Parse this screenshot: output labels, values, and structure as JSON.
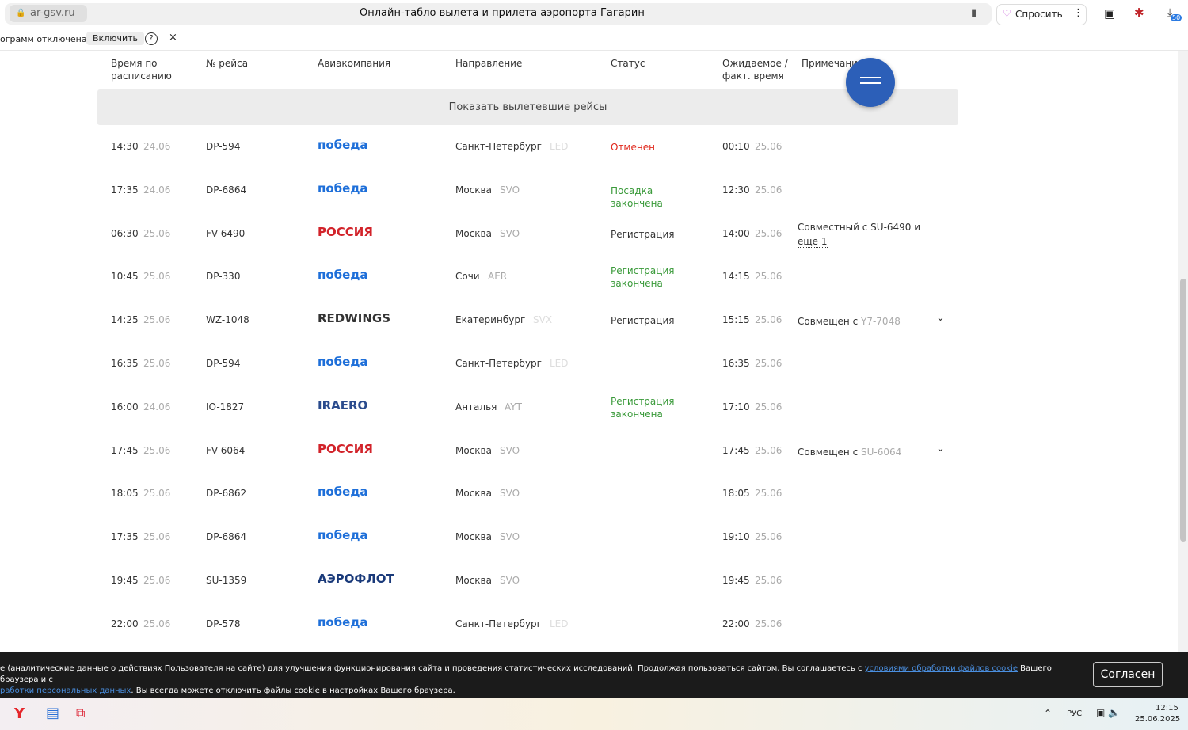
{
  "browser": {
    "url": "ar-gsv.ru",
    "title": "Онлайн-табло вылета и прилета аэропорта Гагарин",
    "ask": "Спросить",
    "badge": "50"
  },
  "infobar": {
    "text": "ограмм отключена",
    "button": "Включить",
    "help": "?",
    "close": "×"
  },
  "table": {
    "headers": [
      "Время по расписанию",
      "№ рейса",
      "Авиакомпания",
      "Направление",
      "Статус",
      "Ожидаемое / факт. время",
      "Примечани"
    ],
    "rows": [
      {
        "time": "14:30",
        "date": "24.06",
        "flight": "DP-594",
        "airline": "победа",
        "airline_color": "#1e6fd9",
        "city": "Санкт-Петербург",
        "code": "LED",
        "status": "Отменен",
        "status_color": "#e0281c",
        "exp_time": "00:10",
        "exp_date": "25.06"
      },
      {
        "time": "17:35",
        "date": "24.06",
        "flight": "DP-6864",
        "airline": "победа",
        "airline_color": "#1e6fd9",
        "city": "Москва",
        "code": "SVO",
        "status": "Посадка закончена",
        "status_color": "#3a9a3a",
        "exp_time": "12:30",
        "exp_date": "25.06"
      },
      {
        "time": "06:30",
        "date": "25.06",
        "flight": "FV-6490",
        "airline": "РОССИЯ",
        "airline_color": "#d2232a",
        "city": "Москва",
        "code": "SVO",
        "status": "Регистрация",
        "status_color": "#333333",
        "exp_time": "14:00",
        "exp_date": "25.06",
        "note": "Совместный с SU-6490 и",
        "note_more": "еще 1"
      },
      {
        "time": "10:45",
        "date": "25.06",
        "flight": "DP-330",
        "airline": "победа",
        "airline_color": "#1e6fd9",
        "city": "Сочи",
        "code": "AER",
        "status": "Регистрация закончена",
        "status_color": "#3a9a3a",
        "exp_time": "14:15",
        "exp_date": "25.06"
      },
      {
        "time": "14:25",
        "date": "25.06",
        "flight": "WZ-1048",
        "airline": "REDWINGS",
        "airline_color": "#333333",
        "city": "Екатеринбург",
        "code": "SVX",
        "status": "Регистрация",
        "status_color": "#333333",
        "exp_time": "15:15",
        "exp_date": "25.06",
        "note": "Совмещен с",
        "note_code": "Y7-7048"
      },
      {
        "time": "16:35",
        "date": "25.06",
        "flight": "DP-594",
        "airline": "победа",
        "airline_color": "#1e6fd9",
        "city": "Санкт-Петербург",
        "code": "LED",
        "exp_time": "16:35",
        "exp_date": "25.06"
      },
      {
        "time": "16:00",
        "date": "24.06",
        "flight": "IO-1827",
        "airline": "IRAERO",
        "airline_color": "#2a4b8d",
        "city": "Анталья",
        "code": "AYT",
        "status": "Регистрация закончена",
        "status_color": "#3a9a3a",
        "exp_time": "17:10",
        "exp_date": "25.06"
      },
      {
        "time": "17:45",
        "date": "25.06",
        "flight": "FV-6064",
        "airline": "РОССИЯ",
        "airline_color": "#d2232a",
        "city": "Москва",
        "code": "SVO",
        "exp_time": "17:45",
        "exp_date": "25.06",
        "note": "Совмещен с",
        "note_code": "SU-6064"
      },
      {
        "time": "18:05",
        "date": "25.06",
        "flight": "DP-6862",
        "airline": "победа",
        "airline_color": "#1e6fd9",
        "city": "Москва",
        "code": "SVO",
        "exp_time": "18:05",
        "exp_date": "25.06"
      },
      {
        "time": "17:35",
        "date": "25.06",
        "flight": "DP-6864",
        "airline": "победа",
        "airline_color": "#1e6fd9",
        "city": "Москва",
        "code": "SVO",
        "exp_time": "19:10",
        "exp_date": "25.06"
      },
      {
        "time": "19:45",
        "date": "25.06",
        "flight": "SU-1359",
        "airline": "АЭРОФЛОТ",
        "airline_color": "#1a3a7a",
        "city": "Москва",
        "code": "SVO",
        "exp_time": "19:45",
        "exp_date": "25.06"
      },
      {
        "time": "22:00",
        "date": "25.06",
        "flight": "DP-578",
        "airline": "победа",
        "airline_color": "#1e6fd9",
        "city": "Санкт-Петербург",
        "code": "LED",
        "exp_time": "22:00",
        "exp_date": "25.06"
      }
    ]
  },
  "show_departed": "Показать вылетевшие рейсы",
  "cookie": {
    "text_1": "е (аналитические данные о действиях Пользователя на сайте) для улучшения функционирования сайта и проведения статистических исследований. Продолжая пользоваться сайтом, Вы соглашаетесь с ",
    "link_1": "условиями обработки файлов cookie",
    "text_2": " Вашего браузера и с",
    "link_2": "работки персональных данных",
    "text_3": ". Вы всегда можете отключить файлы cookie в настройках Вашего браузера.",
    "button": "Согласен"
  },
  "taskbar": {
    "lang": "РУС",
    "time": "12:15",
    "date": "25.06.2025"
  }
}
